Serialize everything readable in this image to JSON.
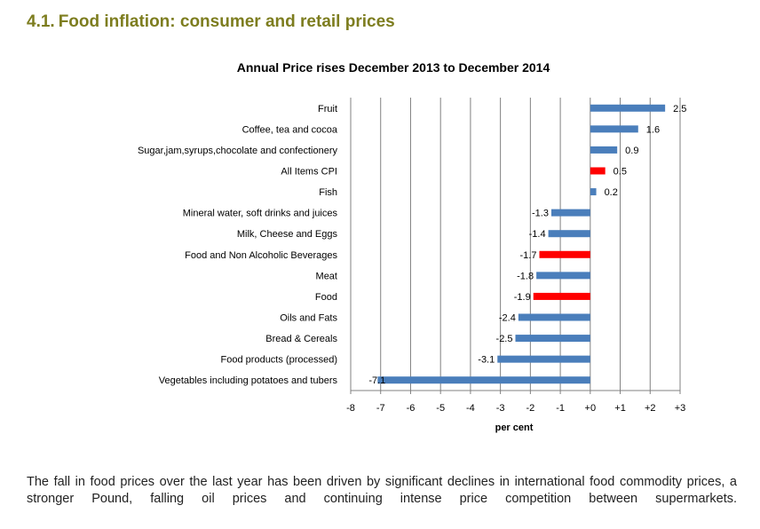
{
  "heading": {
    "number": "4.1.",
    "title": "Food inflation: consumer and retail prices"
  },
  "body_text": "The fall in food prices over the last year has been driven by significant declines in international food commodity prices, a stronger Pound, falling oil prices and continuing intense price competition between supermarkets.",
  "colors": {
    "heading": "#7d7d1f",
    "bar_default": "#4a7ebb",
    "bar_highlight": "#ff0000",
    "gridline": "#808080"
  },
  "chart_data": {
    "type": "bar",
    "orientation": "horizontal",
    "title": "Annual Price rises December 2013 to December 2014",
    "xlabel": "per cent",
    "ylabel": "",
    "xlim": [
      -8,
      3
    ],
    "grid": true,
    "legend": "none",
    "x_tick_labels": [
      "-8",
      "-7",
      "-6",
      "-5",
      "-4",
      "-3",
      "-2",
      "-1",
      "+0",
      "+1",
      "+2",
      "+3"
    ],
    "categories": [
      "Fruit",
      "Coffee, tea and cocoa",
      "Sugar,jam,syrups,chocolate and confectionery",
      "All Items CPI",
      "Fish",
      "Mineral water, soft drinks and juices",
      "Milk, Cheese and Eggs",
      "Food and Non Alcoholic Beverages",
      "Meat",
      "Food",
      "Oils and Fats",
      "Bread & Cereals",
      "Food products (processed)",
      "Vegetables including potatoes and tubers"
    ],
    "values": [
      2.5,
      1.6,
      0.9,
      0.5,
      0.2,
      -1.3,
      -1.4,
      -1.7,
      -1.8,
      -1.9,
      -2.4,
      -2.5,
      -3.1,
      -7.1
    ],
    "value_labels": [
      "2.5",
      "1.6",
      "0.9",
      "0.5",
      "0.2",
      "-1.3",
      "-1.4",
      "-1.7",
      "-1.8",
      "-1.9",
      "-2.4",
      "-2.5",
      "-3.1",
      "-7.1"
    ],
    "highlighted": [
      "All Items CPI",
      "Food and Non Alcoholic Beverages",
      "Food"
    ]
  }
}
